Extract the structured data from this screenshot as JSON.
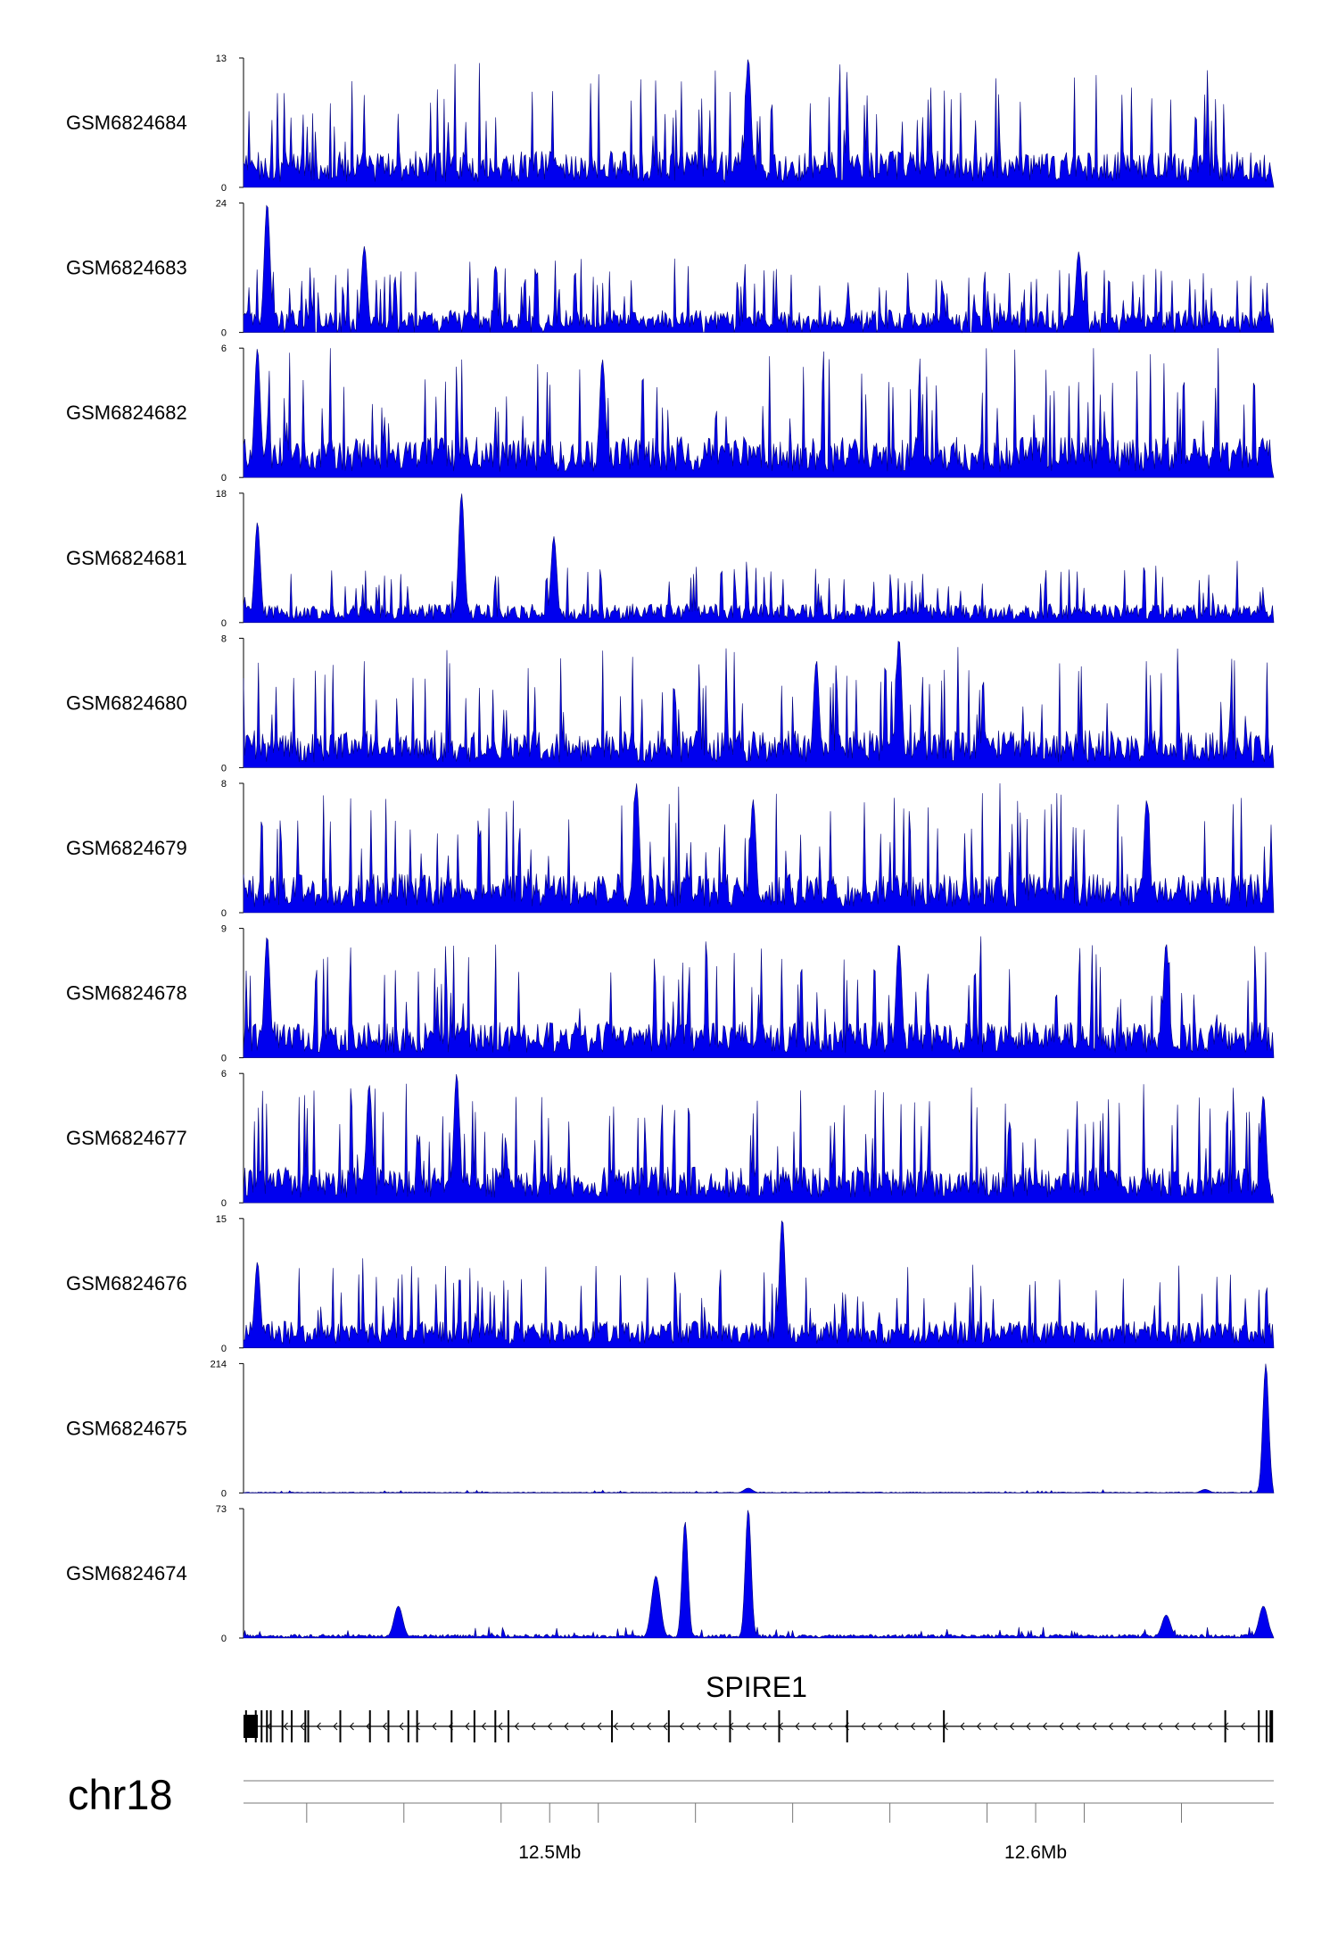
{
  "chart_data": {
    "type": "area",
    "chromosome": "chr18",
    "gene": "SPIRE1",
    "x_tick_labels": [
      "12.5Mb",
      "12.6Mb"
    ],
    "x_tick_label_values_mb": [
      12.5,
      12.6
    ],
    "xlim_mb": [
      12.437,
      12.649
    ],
    "minor_tick_values_mb": [
      12.45,
      12.47,
      12.49,
      12.51,
      12.53,
      12.55,
      12.57,
      12.59,
      12.61,
      12.63
    ],
    "color": "#0000ee",
    "series": [
      {
        "name": "GSM6824684",
        "ymax": 13,
        "baseline": 3.5,
        "spikiness": 1.0,
        "peaks": [
          [
            12.541,
            13
          ]
        ]
      },
      {
        "name": "GSM6824683",
        "ymax": 24,
        "baseline": 4,
        "spikiness": 1.3,
        "peaks": [
          [
            12.442,
            24
          ],
          [
            12.462,
            16
          ],
          [
            12.609,
            15
          ]
        ],
        "gaps": true
      },
      {
        "name": "GSM6824682",
        "ymax": 6,
        "baseline": 1.8,
        "spikiness": 1.0,
        "peaks": [
          [
            12.44,
            6
          ],
          [
            12.511,
            5.5
          ]
        ]
      },
      {
        "name": "GSM6824681",
        "ymax": 18,
        "baseline": 2.5,
        "spikiness": 0.8,
        "peaks": [
          [
            12.482,
            18
          ],
          [
            12.501,
            12
          ],
          [
            12.44,
            14
          ]
        ]
      },
      {
        "name": "GSM6824680",
        "ymax": 8,
        "baseline": 2.2,
        "spikiness": 1.0,
        "peaks": [
          [
            12.572,
            8
          ],
          [
            12.555,
            6.5
          ]
        ]
      },
      {
        "name": "GSM6824679",
        "ymax": 8,
        "baseline": 2.3,
        "spikiness": 1.0,
        "peaks": [
          [
            12.518,
            8
          ],
          [
            12.542,
            7
          ],
          [
            12.623,
            7
          ]
        ]
      },
      {
        "name": "GSM6824678",
        "ymax": 9,
        "baseline": 2.4,
        "spikiness": 1.0,
        "peaks": [
          [
            12.442,
            8.5
          ],
          [
            12.572,
            8
          ],
          [
            12.627,
            8
          ]
        ]
      },
      {
        "name": "GSM6824677",
        "ymax": 6,
        "baseline": 1.6,
        "spikiness": 1.0,
        "peaks": [
          [
            12.481,
            6
          ],
          [
            12.463,
            5.5
          ],
          [
            12.647,
            5
          ]
        ]
      },
      {
        "name": "GSM6824676",
        "ymax": 15,
        "baseline": 3,
        "spikiness": 0.9,
        "peaks": [
          [
            12.548,
            15
          ],
          [
            12.44,
            10
          ]
        ]
      },
      {
        "name": "GSM6824675",
        "ymax": 214,
        "baseline": 1.5,
        "spikiness": 0.3,
        "peaks": [
          [
            12.6475,
            214
          ],
          [
            12.541,
            8
          ],
          [
            12.635,
            6
          ]
        ]
      },
      {
        "name": "GSM6824674",
        "ymax": 73,
        "baseline": 2,
        "spikiness": 0.4,
        "peaks": [
          [
            12.541,
            73
          ],
          [
            12.528,
            66
          ],
          [
            12.522,
            35
          ],
          [
            12.469,
            18
          ],
          [
            12.647,
            18
          ],
          [
            12.627,
            13
          ]
        ]
      }
    ],
    "y_tick_min_label": "0",
    "gene_model": {
      "strand": "-",
      "start_mb": 12.437,
      "end_mb": 12.6485,
      "exons_mb": [
        12.4375,
        12.4395,
        12.4407,
        12.4418,
        12.4426,
        12.445,
        12.4469,
        12.4497,
        12.4503,
        12.4569,
        12.463,
        12.4668,
        12.4709,
        12.4727,
        12.4798,
        12.4845,
        12.4888,
        12.4915,
        12.5128,
        12.5245,
        12.5371,
        12.5472,
        12.5612,
        12.5811,
        12.639,
        12.6459,
        12.6475,
        12.6483
      ]
    }
  }
}
